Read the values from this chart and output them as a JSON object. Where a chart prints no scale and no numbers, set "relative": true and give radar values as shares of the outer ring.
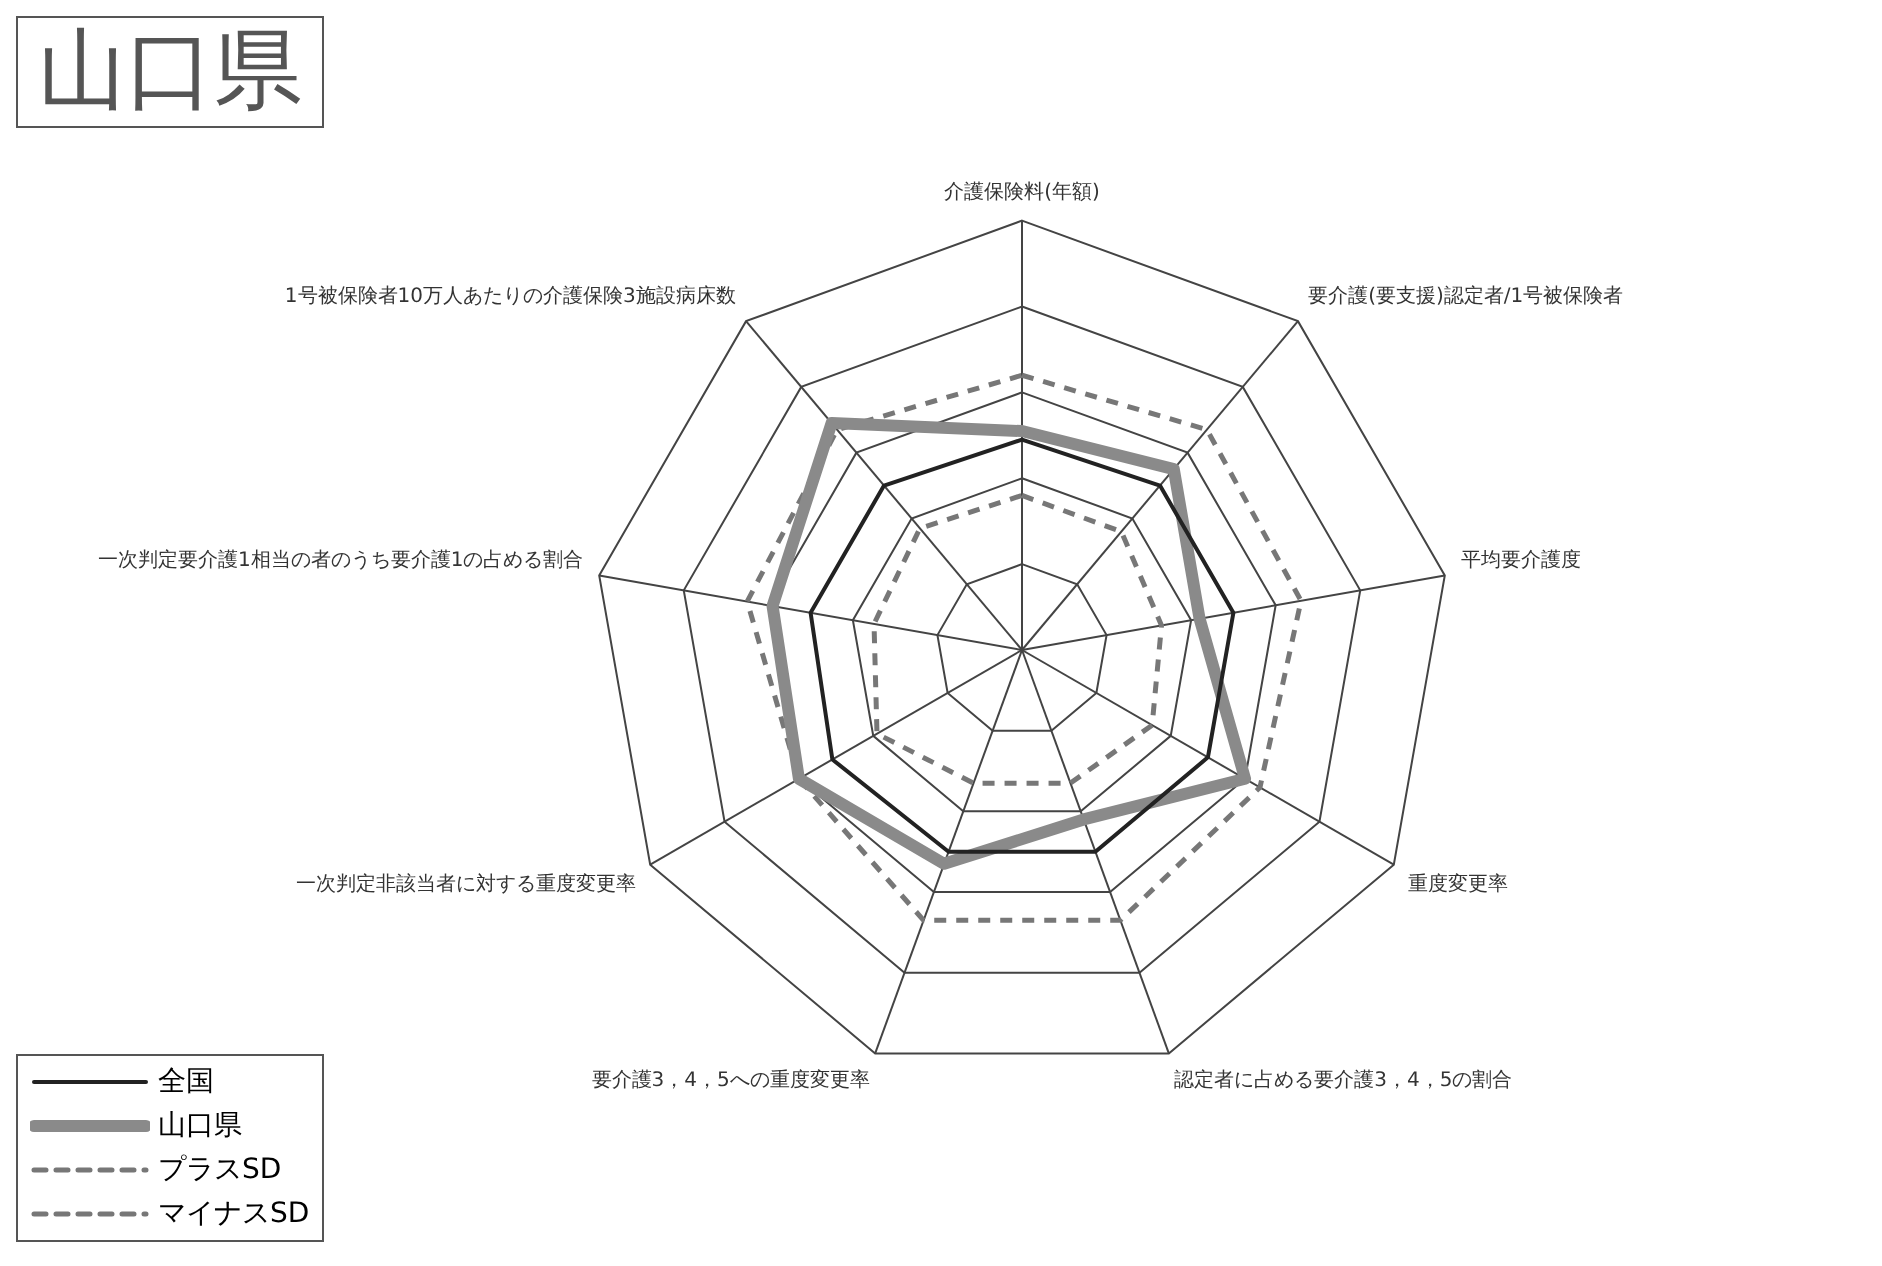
{
  "chart_data": {
    "type": "radar",
    "title": "山口県",
    "relative": true,
    "grid": true,
    "legend": "bottom left",
    "marker": "none",
    "categories": [
      "介護保険料(年額)",
      "要介護(要支援)認定者/1号被保険者",
      "平均要介護度",
      "重度変更率",
      "認定者に占める要介護3，4，5の割合",
      "要介護3，4，5への重度変更率",
      "一次判定非該当者に対する重度変更率",
      "一次判定要介護1相当の者のうち要介護1の占める割合",
      "1号被保険者10万人あたりの介護保険3施設病床数"
    ],
    "series": [
      {
        "name": "全国",
        "color": "#222222",
        "line_style": "solid",
        "values": [
          0.49,
          0.5,
          0.5,
          0.5,
          0.5,
          0.5,
          0.51,
          0.5,
          0.5
        ]
      },
      {
        "name": "山口県",
        "color": "#8a8a8a",
        "line_style": "solid",
        "values": [
          0.51,
          0.55,
          0.42,
          0.6,
          0.42,
          0.53,
          0.6,
          0.59,
          0.69
        ]
      },
      {
        "name": "プラスSD",
        "color": "#777777",
        "line_style": "dashed",
        "values": [
          0.64,
          0.67,
          0.66,
          0.64,
          0.67,
          0.67,
          0.6,
          0.65,
          0.67
        ]
      },
      {
        "name": "マイナスSD",
        "color": "#777777",
        "line_style": "dashed",
        "values": [
          0.36,
          0.36,
          0.33,
          0.35,
          0.33,
          0.33,
          0.39,
          0.35,
          0.37
        ]
      }
    ]
  }
}
